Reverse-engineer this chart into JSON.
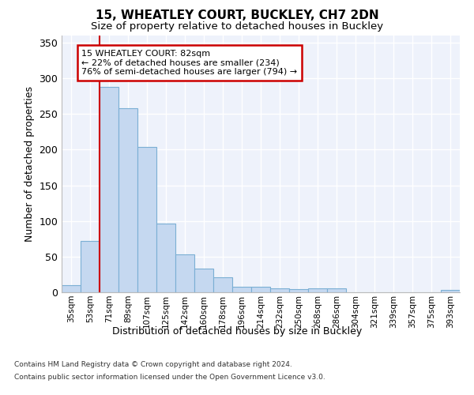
{
  "title_line1": "15, WHEATLEY COURT, BUCKLEY, CH7 2DN",
  "title_line2": "Size of property relative to detached houses in Buckley",
  "xlabel": "Distribution of detached houses by size in Buckley",
  "ylabel": "Number of detached properties",
  "categories": [
    "35sqm",
    "53sqm",
    "71sqm",
    "89sqm",
    "107sqm",
    "125sqm",
    "142sqm",
    "160sqm",
    "178sqm",
    "196sqm",
    "214sqm",
    "232sqm",
    "250sqm",
    "268sqm",
    "286sqm",
    "304sqm",
    "321sqm",
    "339sqm",
    "357sqm",
    "375sqm",
    "393sqm"
  ],
  "values": [
    10,
    72,
    288,
    258,
    204,
    96,
    53,
    33,
    21,
    8,
    8,
    5,
    4,
    5,
    5,
    0,
    0,
    0,
    0,
    0,
    3
  ],
  "bar_color": "#c5d8f0",
  "bar_edge_color": "#7bafd4",
  "vline_color": "#cc0000",
  "vline_x": 1.5,
  "annotation_text": "15 WHEATLEY COURT: 82sqm\n← 22% of detached houses are smaller (234)\n76% of semi-detached houses are larger (794) →",
  "annotation_box_color": "#ffffff",
  "annotation_box_edge": "#cc0000",
  "ylim": [
    0,
    360
  ],
  "yticks": [
    0,
    50,
    100,
    150,
    200,
    250,
    300,
    350
  ],
  "background_color": "#eef2fb",
  "grid_color": "#ffffff",
  "footer_line1": "Contains HM Land Registry data © Crown copyright and database right 2024.",
  "footer_line2": "Contains public sector information licensed under the Open Government Licence v3.0."
}
